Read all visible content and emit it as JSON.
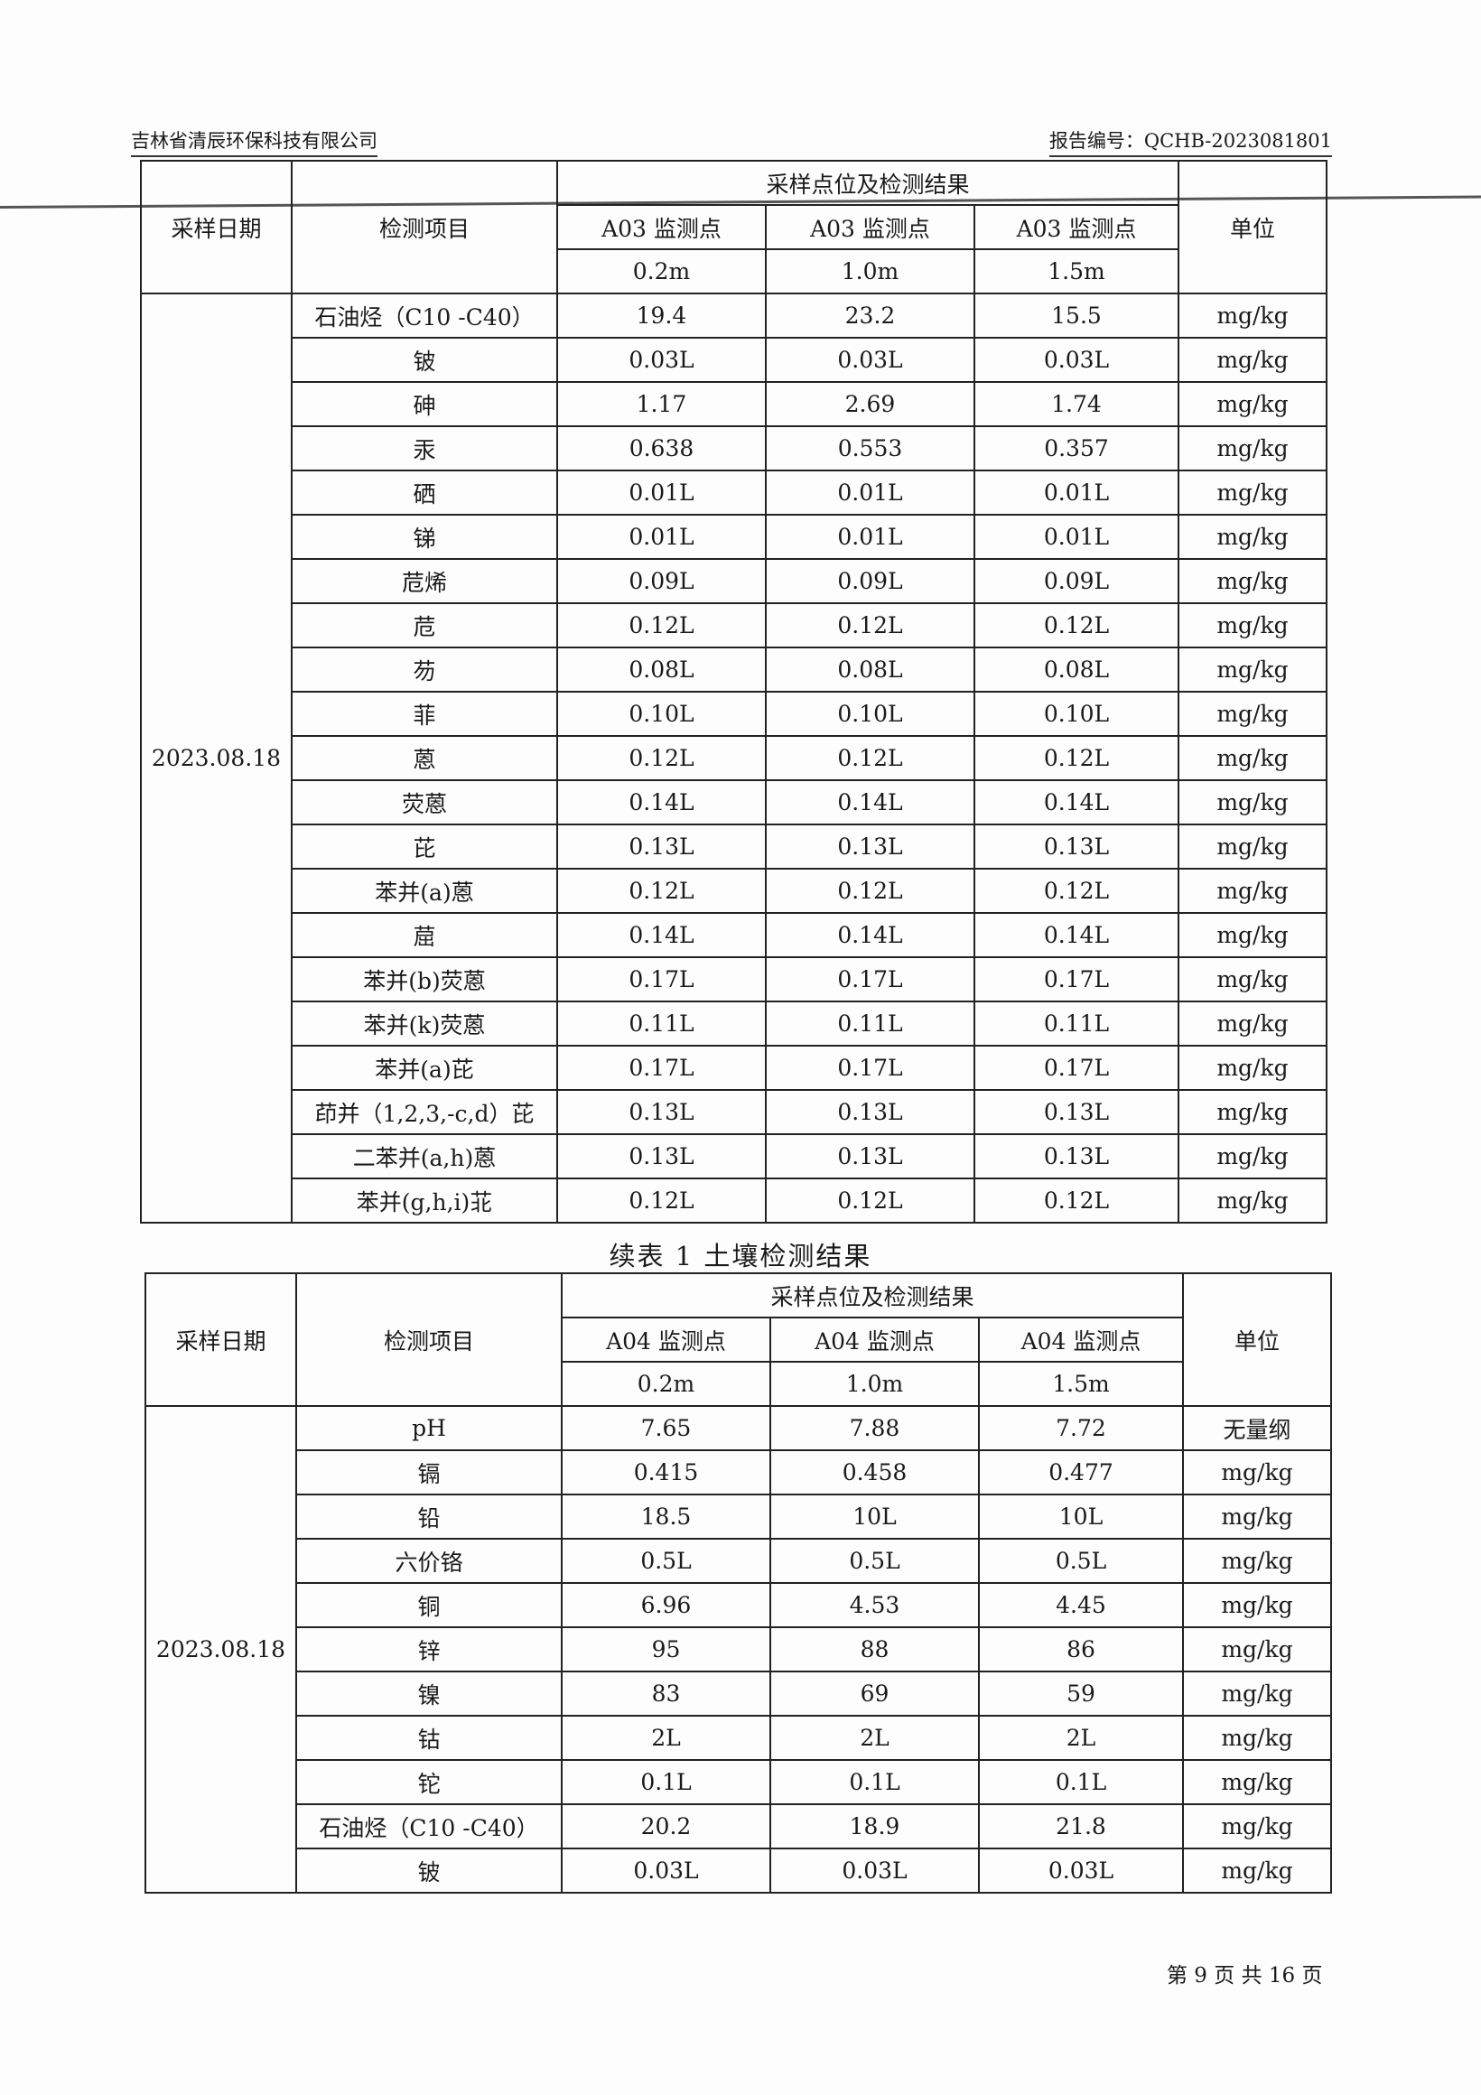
{
  "header": {
    "company": "吉林省清辰环保科技有限公司",
    "report_no": "报告编号：QCHB-2023081801"
  },
  "table1": {
    "head": {
      "date": "采样日期",
      "item": "检测项目",
      "group": "采样点位及检测结果",
      "unit": "单位",
      "points": [
        "A03 监测点",
        "A03 监测点",
        "A03 监测点"
      ],
      "depths": [
        "0.2m",
        "1.0m",
        "1.5m"
      ]
    },
    "date": "2023.08.18",
    "rows": [
      {
        "item": "石油烃（C10 -C40）",
        "v": [
          "19.4",
          "23.2",
          "15.5"
        ],
        "unit": "mg/kg"
      },
      {
        "item": "铍",
        "v": [
          "0.03L",
          "0.03L",
          "0.03L"
        ],
        "unit": "mg/kg"
      },
      {
        "item": "砷",
        "v": [
          "1.17",
          "2.69",
          "1.74"
        ],
        "unit": "mg/kg"
      },
      {
        "item": "汞",
        "v": [
          "0.638",
          "0.553",
          "0.357"
        ],
        "unit": "mg/kg"
      },
      {
        "item": "硒",
        "v": [
          "0.01L",
          "0.01L",
          "0.01L"
        ],
        "unit": "mg/kg"
      },
      {
        "item": "锑",
        "v": [
          "0.01L",
          "0.01L",
          "0.01L"
        ],
        "unit": "mg/kg"
      },
      {
        "item": "苊烯",
        "v": [
          "0.09L",
          "0.09L",
          "0.09L"
        ],
        "unit": "mg/kg"
      },
      {
        "item": "苊",
        "v": [
          "0.12L",
          "0.12L",
          "0.12L"
        ],
        "unit": "mg/kg"
      },
      {
        "item": "芴",
        "v": [
          "0.08L",
          "0.08L",
          "0.08L"
        ],
        "unit": "mg/kg"
      },
      {
        "item": "菲",
        "v": [
          "0.10L",
          "0.10L",
          "0.10L"
        ],
        "unit": "mg/kg"
      },
      {
        "item": "蒽",
        "v": [
          "0.12L",
          "0.12L",
          "0.12L"
        ],
        "unit": "mg/kg"
      },
      {
        "item": "荧蒽",
        "v": [
          "0.14L",
          "0.14L",
          "0.14L"
        ],
        "unit": "mg/kg"
      },
      {
        "item": "芘",
        "v": [
          "0.13L",
          "0.13L",
          "0.13L"
        ],
        "unit": "mg/kg"
      },
      {
        "item": "苯并(a)蒽",
        "v": [
          "0.12L",
          "0.12L",
          "0.12L"
        ],
        "unit": "mg/kg"
      },
      {
        "item": "䓛",
        "v": [
          "0.14L",
          "0.14L",
          "0.14L"
        ],
        "unit": "mg/kg"
      },
      {
        "item": "苯并(b)荧蒽",
        "v": [
          "0.17L",
          "0.17L",
          "0.17L"
        ],
        "unit": "mg/kg"
      },
      {
        "item": "苯并(k)荧蒽",
        "v": [
          "0.11L",
          "0.11L",
          "0.11L"
        ],
        "unit": "mg/kg"
      },
      {
        "item": "苯并(a)芘",
        "v": [
          "0.17L",
          "0.17L",
          "0.17L"
        ],
        "unit": "mg/kg"
      },
      {
        "item": "茚并（1,2,3,-c,d）芘",
        "v": [
          "0.13L",
          "0.13L",
          "0.13L"
        ],
        "unit": "mg/kg"
      },
      {
        "item": "二苯并(a,h)蒽",
        "v": [
          "0.13L",
          "0.13L",
          "0.13L"
        ],
        "unit": "mg/kg"
      },
      {
        "item": "苯并(g,h,i)苝",
        "v": [
          "0.12L",
          "0.12L",
          "0.12L"
        ],
        "unit": "mg/kg"
      }
    ]
  },
  "caption": "续表 1  土壤检测结果",
  "table2": {
    "head": {
      "date": "采样日期",
      "item": "检测项目",
      "group": "采样点位及检测结果",
      "unit": "单位",
      "points": [
        "A04 监测点",
        "A04 监测点",
        "A04 监测点"
      ],
      "depths": [
        "0.2m",
        "1.0m",
        "1.5m"
      ]
    },
    "date": "2023.08.18",
    "rows": [
      {
        "item": "pH",
        "v": [
          "7.65",
          "7.88",
          "7.72"
        ],
        "unit": "无量纲"
      },
      {
        "item": "镉",
        "v": [
          "0.415",
          "0.458",
          "0.477"
        ],
        "unit": "mg/kg"
      },
      {
        "item": "铅",
        "v": [
          "18.5",
          "10L",
          "10L"
        ],
        "unit": "mg/kg"
      },
      {
        "item": "六价铬",
        "v": [
          "0.5L",
          "0.5L",
          "0.5L"
        ],
        "unit": "mg/kg"
      },
      {
        "item": "铜",
        "v": [
          "6.96",
          "4.53",
          "4.45"
        ],
        "unit": "mg/kg"
      },
      {
        "item": "锌",
        "v": [
          "95",
          "88",
          "86"
        ],
        "unit": "mg/kg"
      },
      {
        "item": "镍",
        "v": [
          "83",
          "69",
          "59"
        ],
        "unit": "mg/kg"
      },
      {
        "item": "钴",
        "v": [
          "2L",
          "2L",
          "2L"
        ],
        "unit": "mg/kg"
      },
      {
        "item": "铊",
        "v": [
          "0.1L",
          "0.1L",
          "0.1L"
        ],
        "unit": "mg/kg"
      },
      {
        "item": "石油烃（C10 -C40）",
        "v": [
          "20.2",
          "18.9",
          "21.8"
        ],
        "unit": "mg/kg"
      },
      {
        "item": "铍",
        "v": [
          "0.03L",
          "0.03L",
          "0.03L"
        ],
        "unit": "mg/kg"
      }
    ]
  },
  "footer": {
    "page": "第 9 页 共 16 页"
  }
}
